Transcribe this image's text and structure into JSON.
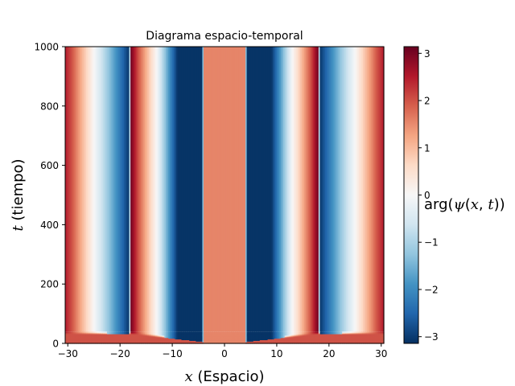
{
  "chart_data": {
    "type": "heatmap",
    "title": "Diagrama espacio-temporal",
    "xlabel": "x (Espacio)",
    "ylabel": "t (tiempo)",
    "colorbar_label": "arg(ψ(x,t))",
    "xlim": [
      -30.5,
      30.5
    ],
    "ylim": [
      0,
      1000
    ],
    "x_ticks": [
      -30,
      -20,
      -10,
      0,
      10,
      20,
      30
    ],
    "x_tick_labels": [
      "−30",
      "−20",
      "−10",
      "0",
      "10",
      "20",
      "30"
    ],
    "y_ticks": [
      0,
      200,
      400,
      600,
      800,
      1000
    ],
    "y_tick_labels": [
      "0",
      "200",
      "400",
      "600",
      "800",
      "1000"
    ],
    "colorbar_range": [
      -3.14159,
      3.14159
    ],
    "colorbar_ticks": [
      -3,
      -2,
      -1,
      0,
      1,
      2,
      3
    ],
    "colorbar_tick_labels": [
      "−3",
      "−2",
      "−1",
      "0",
      "1",
      "2",
      "3"
    ],
    "colormap": "RdBu_r",
    "phase_profile_steady": {
      "x": [
        -30.5,
        -29.2,
        -25.0,
        -20.5,
        -18.2,
        -18.0,
        -16.5,
        -13.0,
        -9.0,
        -4.2,
        -4.0,
        4.0,
        4.2,
        9.0,
        13.0,
        16.5,
        18.0,
        18.2,
        20.5,
        25.0,
        29.2,
        30.5
      ],
      "phase": [
        2.5,
        2.0,
        0.0,
        -2.0,
        -3.1,
        3.1,
        2.0,
        0.0,
        -3.1,
        -3.1,
        1.55,
        1.55,
        -3.1,
        -3.1,
        0.0,
        2.0,
        3.1,
        -3.1,
        -2.0,
        0.0,
        2.0,
        2.5
      ]
    },
    "transient_until_t": 40,
    "phase_at_t0": 2.0
  }
}
